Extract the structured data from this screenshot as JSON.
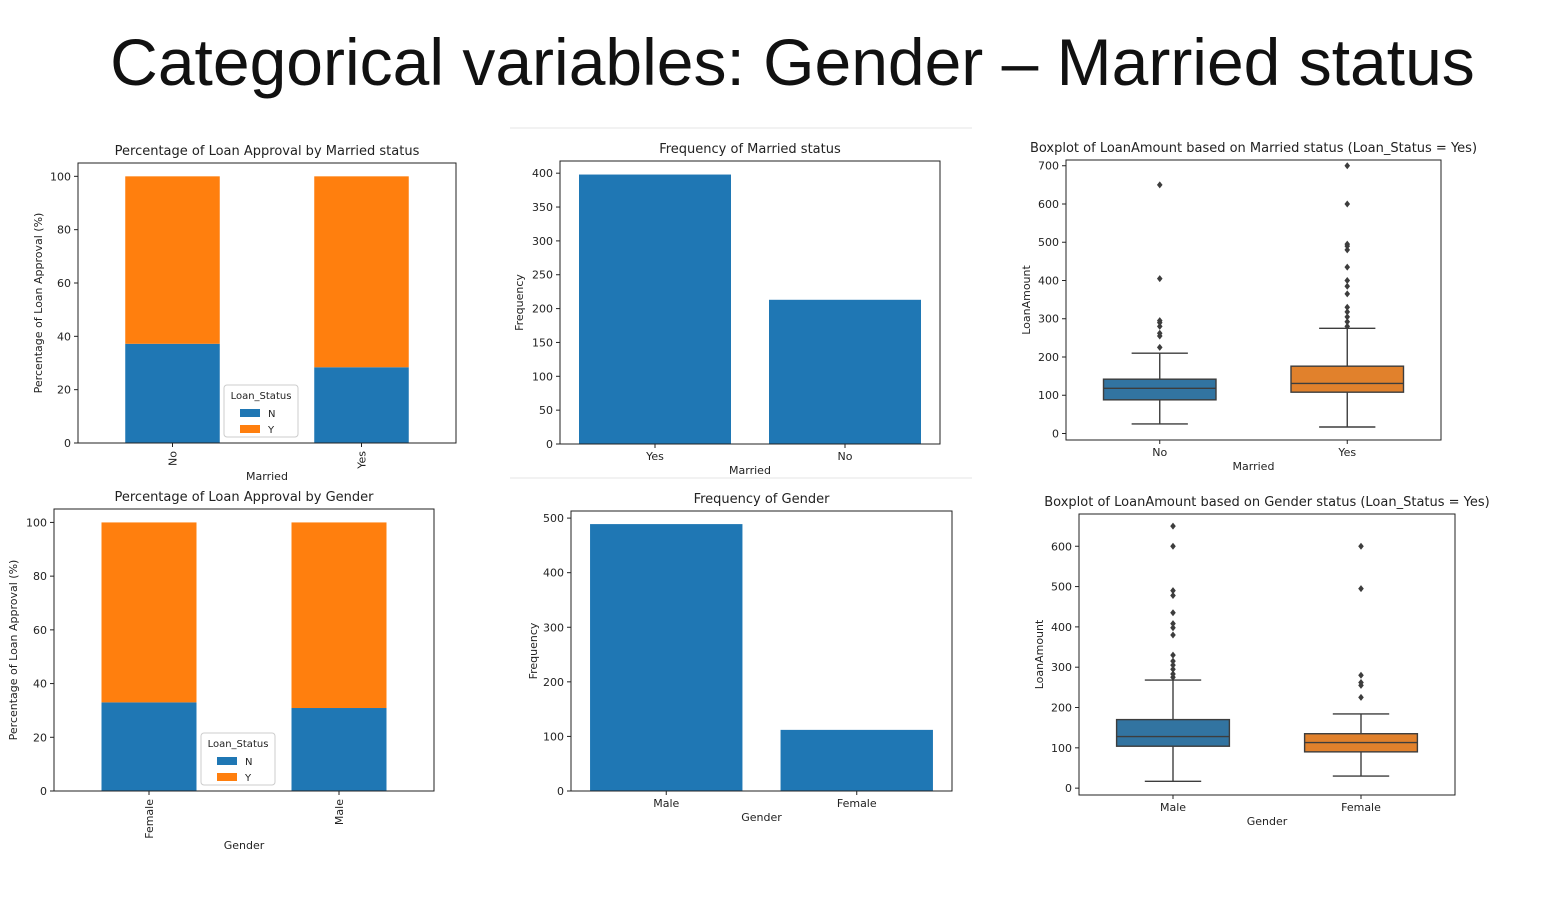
{
  "slide": {
    "title": "Categorical variables: Gender – Married status"
  },
  "colors": {
    "blue": "#1f77b4",
    "orange": "#ff7f0e",
    "box_blue": "#3274a1",
    "box_orange": "#e1812c"
  },
  "chart_data": [
    {
      "id": "married-pct",
      "type": "bar",
      "stacked": true,
      "title": "Percentage of Loan Approval by Married status",
      "xlabel": "Married",
      "ylabel": "Percentage of Loan Approval (%)",
      "categories": [
        "No",
        "Yes"
      ],
      "series": [
        {
          "name": "N",
          "color": "#1f77b4",
          "values": [
            37.2,
            28.4
          ]
        },
        {
          "name": "Y",
          "color": "#ff7f0e",
          "values": [
            62.8,
            71.6
          ]
        }
      ],
      "ylim": [
        0,
        105
      ],
      "yticks": [
        0,
        20,
        40,
        60,
        80,
        100
      ],
      "legend": {
        "title": "Loan_Status",
        "placement": "lower-center"
      }
    },
    {
      "id": "married-freq",
      "type": "bar",
      "title": "Frequency of Married status",
      "xlabel": "Married",
      "ylabel": "Frequency",
      "categories": [
        "Yes",
        "No"
      ],
      "values": [
        398,
        213
      ],
      "color": "#1f77b4",
      "ylim": [
        0,
        418
      ],
      "yticks": [
        0,
        50,
        100,
        150,
        200,
        250,
        300,
        350,
        400
      ]
    },
    {
      "id": "married-box",
      "type": "box",
      "title": "Boxplot of LoanAmount based on Married status (Loan_Status = Yes)",
      "xlabel": "Married",
      "ylabel": "LoanAmount",
      "categories": [
        "No",
        "Yes"
      ],
      "boxes": [
        {
          "whislo": 25,
          "q1": 88,
          "med": 118,
          "q3": 142,
          "whishi": 210,
          "fliers": [
            225,
            255,
            262,
            280,
            290,
            295,
            405,
            650
          ],
          "color": "#3274a1"
        },
        {
          "whislo": 17,
          "q1": 108,
          "med": 131,
          "q3": 176,
          "whishi": 275,
          "fliers": [
            280,
            292,
            305,
            318,
            330,
            365,
            385,
            400,
            435,
            480,
            490,
            495,
            600,
            700
          ],
          "color": "#e1812c"
        }
      ],
      "ylim": [
        -17,
        715
      ],
      "yticks": [
        0,
        100,
        200,
        300,
        400,
        500,
        600,
        700
      ]
    },
    {
      "id": "gender-pct",
      "type": "bar",
      "stacked": true,
      "title": "Percentage of Loan Approval by Gender",
      "xlabel": "Gender",
      "ylabel": "Percentage of Loan Approval (%)",
      "categories": [
        "Female",
        "Male"
      ],
      "series": [
        {
          "name": "N",
          "color": "#1f77b4",
          "values": [
            33.0,
            30.9
          ]
        },
        {
          "name": "Y",
          "color": "#ff7f0e",
          "values": [
            67.0,
            69.1
          ]
        }
      ],
      "ylim": [
        0,
        105
      ],
      "yticks": [
        0,
        20,
        40,
        60,
        80,
        100
      ],
      "legend": {
        "title": "Loan_Status",
        "placement": "lower-center"
      }
    },
    {
      "id": "gender-freq",
      "type": "bar",
      "title": "Frequency of Gender",
      "xlabel": "Gender",
      "ylabel": "Frequency",
      "categories": [
        "Male",
        "Female"
      ],
      "values": [
        489,
        112
      ],
      "color": "#1f77b4",
      "ylim": [
        0,
        513
      ],
      "yticks": [
        0,
        100,
        200,
        300,
        400,
        500
      ]
    },
    {
      "id": "gender-box",
      "type": "box",
      "title": "Boxplot of LoanAmount based on Gender status (Loan_Status = Yes)",
      "xlabel": "Gender",
      "ylabel": "LoanAmount",
      "categories": [
        "Male",
        "Female"
      ],
      "boxes": [
        {
          "whislo": 17,
          "q1": 104,
          "med": 128,
          "q3": 170,
          "whishi": 268,
          "fliers": [
            275,
            283,
            295,
            305,
            315,
            330,
            380,
            398,
            408,
            435,
            478,
            490,
            600,
            650
          ],
          "color": "#3274a1"
        },
        {
          "whislo": 30,
          "q1": 90,
          "med": 113,
          "q3": 135,
          "whishi": 184,
          "fliers": [
            225,
            255,
            262,
            280,
            495,
            600
          ],
          "color": "#e1812c"
        }
      ],
      "ylim": [
        -17,
        680
      ],
      "yticks": [
        0,
        100,
        200,
        300,
        400,
        500,
        600
      ]
    }
  ]
}
